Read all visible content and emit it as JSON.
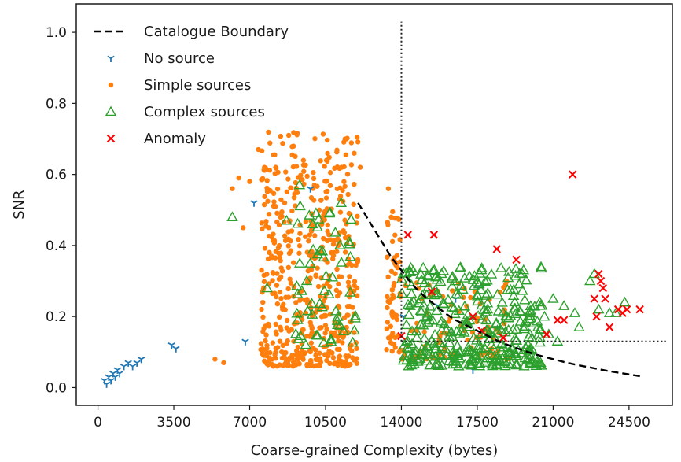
{
  "chart_data": {
    "type": "scatter",
    "title": "",
    "xlabel": "Coarse-grained Complexity (bytes)",
    "ylabel": "SNR",
    "xlim": [
      -1000,
      26500
    ],
    "ylim": [
      -0.05,
      1.08
    ],
    "xticks": [
      0,
      3500,
      7000,
      10500,
      14000,
      17500,
      21000,
      24500
    ],
    "xtick_labels": [
      "0",
      "3500",
      "7000",
      "10500",
      "14000",
      "17500",
      "21000",
      "24500"
    ],
    "yticks": [
      0.0,
      0.2,
      0.4,
      0.6,
      0.8,
      1.0
    ],
    "ytick_labels": [
      "0.0",
      "0.2",
      "0.4",
      "0.6",
      "0.8",
      "1.0"
    ],
    "grid": false,
    "legend_position": "top-left",
    "colors": {
      "boundary": "#000000",
      "no_source": "#1f77b4",
      "simple": "#ff7f0e",
      "complex": "#2ca02c",
      "anomaly": "#ff0000"
    },
    "legend": [
      {
        "label": "Catalogue Boundary",
        "kind": "boundary"
      },
      {
        "label": "No source",
        "kind": "no_source"
      },
      {
        "label": "Simple sources",
        "kind": "simple"
      },
      {
        "label": "Complex sources",
        "kind": "complex"
      },
      {
        "label": "Anomaly",
        "kind": "anomaly"
      }
    ],
    "threshold_lines": {
      "vertical_x": 14000,
      "vertical_y_range": [
        0.13,
        1.03
      ],
      "horizontal_y": 0.13,
      "horizontal_x_range": [
        14000,
        26200
      ]
    },
    "boundary_curve": {
      "x": [
        12000,
        12500,
        13000,
        13500,
        14000,
        14500,
        15000,
        15500,
        16000,
        16500,
        17000,
        17500,
        18000,
        18500,
        19000,
        19500,
        20000,
        20500,
        21000,
        21500,
        22000,
        22500,
        23000,
        23500,
        24000,
        24500,
        25000
      ],
      "y": [
        0.52,
        0.47,
        0.42,
        0.37,
        0.33,
        0.29,
        0.26,
        0.235,
        0.21,
        0.19,
        0.175,
        0.16,
        0.145,
        0.13,
        0.118,
        0.107,
        0.097,
        0.088,
        0.08,
        0.072,
        0.065,
        0.059,
        0.053,
        0.047,
        0.042,
        0.037,
        0.032
      ]
    },
    "series": [
      {
        "name": "No source",
        "kind": "no_source",
        "points": [
          [
            300,
            0.02
          ],
          [
            400,
            0.01
          ],
          [
            500,
            0.03
          ],
          [
            600,
            0.02
          ],
          [
            700,
            0.04
          ],
          [
            800,
            0.03
          ],
          [
            900,
            0.05
          ],
          [
            1000,
            0.04
          ],
          [
            1200,
            0.06
          ],
          [
            1400,
            0.07
          ],
          [
            1600,
            0.06
          ],
          [
            1800,
            0.07
          ],
          [
            2000,
            0.08
          ],
          [
            3400,
            0.12
          ],
          [
            3600,
            0.11
          ],
          [
            7200,
            0.52
          ],
          [
            9800,
            0.56
          ],
          [
            6800,
            0.13
          ],
          [
            16500,
            0.25
          ],
          [
            17500,
            0.28
          ],
          [
            17300,
            0.05
          ],
          [
            14100,
            0.2
          ],
          [
            15700,
            0.23
          ]
        ]
      },
      {
        "name": "Simple sources",
        "kind": "simple",
        "cluster": {
          "x": [
            7500,
            12000
          ],
          "y": [
            0.06,
            0.72
          ],
          "n": 560,
          "seed": 11
        },
        "cluster2": {
          "x": [
            13300,
            14000
          ],
          "y": [
            0.1,
            0.5
          ],
          "n": 60,
          "seed": 29
        },
        "cluster3": {
          "x": [
            14000,
            19000
          ],
          "y": [
            0.08,
            0.3
          ],
          "n": 90,
          "seed": 43
        },
        "points": [
          [
            6200,
            0.56
          ],
          [
            6500,
            0.59
          ],
          [
            7400,
            0.67
          ],
          [
            8800,
            0.71
          ],
          [
            8200,
            0.62
          ],
          [
            7000,
            0.58
          ],
          [
            5400,
            0.08
          ],
          [
            5800,
            0.07
          ],
          [
            6700,
            0.45
          ],
          [
            13400,
            0.56
          ],
          [
            12100,
            0.62
          ]
        ]
      },
      {
        "name": "Complex sources",
        "kind": "complex",
        "cluster": {
          "x": [
            14000,
            20500
          ],
          "y": [
            0.06,
            0.34
          ],
          "n": 360,
          "seed": 71
        },
        "cluster2": {
          "x": [
            9000,
            12000
          ],
          "y": [
            0.12,
            0.52
          ],
          "n": 60,
          "seed": 83
        },
        "points": [
          [
            6200,
            0.48
          ],
          [
            7800,
            0.28
          ],
          [
            9300,
            0.57
          ],
          [
            8700,
            0.47
          ],
          [
            20600,
            0.2
          ],
          [
            21000,
            0.25
          ],
          [
            21500,
            0.23
          ],
          [
            22000,
            0.21
          ],
          [
            22700,
            0.3
          ],
          [
            22900,
            0.32
          ],
          [
            23100,
            0.22
          ],
          [
            23600,
            0.21
          ],
          [
            23900,
            0.21
          ],
          [
            24300,
            0.24
          ],
          [
            20300,
            0.17
          ],
          [
            20800,
            0.15
          ],
          [
            21200,
            0.13
          ],
          [
            22200,
            0.17
          ]
        ]
      },
      {
        "name": "Anomaly",
        "kind": "anomaly",
        "points": [
          [
            14000,
            0.145
          ],
          [
            14300,
            0.43
          ],
          [
            15500,
            0.43
          ],
          [
            18400,
            0.39
          ],
          [
            19300,
            0.36
          ],
          [
            21900,
            0.6
          ],
          [
            22900,
            0.25
          ],
          [
            23100,
            0.32
          ],
          [
            23200,
            0.3
          ],
          [
            23300,
            0.28
          ],
          [
            23400,
            0.25
          ],
          [
            23000,
            0.2
          ],
          [
            23600,
            0.17
          ],
          [
            24000,
            0.22
          ],
          [
            24200,
            0.21
          ],
          [
            24400,
            0.22
          ],
          [
            25000,
            0.22
          ],
          [
            21200,
            0.19
          ],
          [
            21500,
            0.19
          ],
          [
            20700,
            0.15
          ],
          [
            17300,
            0.2
          ],
          [
            17700,
            0.16
          ],
          [
            18700,
            0.14
          ],
          [
            15400,
            0.27
          ]
        ]
      }
    ]
  }
}
